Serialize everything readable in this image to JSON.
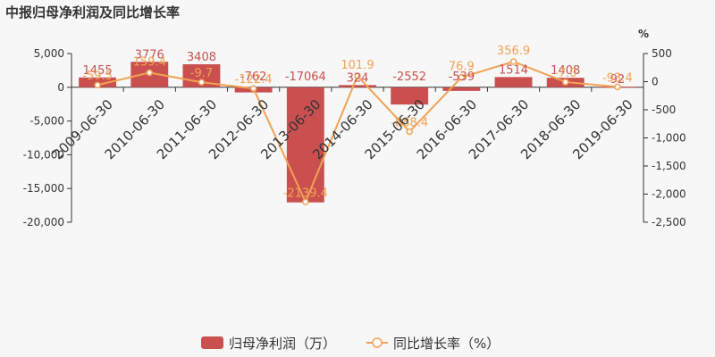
{
  "title": "中报归母净利润及同比增长率",
  "chart_data": {
    "type": "bar",
    "categories": [
      "2009-06-30",
      "2010-06-30",
      "2011-06-30",
      "2012-06-30",
      "2013-06-30",
      "2014-06-30",
      "2015-06-30",
      "2016-06-30",
      "2017-06-30",
      "2018-06-30",
      "2019-06-30"
    ],
    "series": [
      {
        "name": "归母净利润（万）",
        "type": "bar",
        "axis": "left",
        "color": "#c9504f",
        "values": [
          1455,
          3776,
          3408,
          -762,
          -17064,
          324,
          -2552,
          -539,
          1514,
          1408,
          92
        ],
        "labels": [
          "1455",
          "3776",
          "3408",
          "-762",
          "-17064",
          "324",
          "-2552",
          "-539",
          "1514",
          "1408",
          "92"
        ]
      },
      {
        "name": "同比增长率（%）",
        "type": "line",
        "axis": "right",
        "color": "#f2a253",
        "values": [
          -59.5,
          159.4,
          -9.7,
          -122.4,
          -2139.4,
          101.9,
          -888.4,
          76.9,
          356.9,
          -7.0,
          -93.4
        ],
        "labels": [
          "-59.5",
          "159.4",
          "-9.7",
          "-122.4",
          "-2139.4",
          "101.9",
          "-888.4",
          "76.9",
          "356.9",
          "-7.0",
          "-93.4"
        ]
      }
    ],
    "left_axis": {
      "ylim": [
        -20000,
        5000
      ],
      "ticks": [
        "5,000",
        "0",
        "-5,000",
        "-10,000",
        "-15,000",
        "-20,000"
      ],
      "tick_values": [
        5000,
        0,
        -5000,
        -10000,
        -15000,
        -20000
      ]
    },
    "right_axis": {
      "label": "%",
      "ylim": [
        -2500,
        500
      ],
      "ticks": [
        "500",
        "0",
        "-500",
        "-1,000",
        "-1,500",
        "-2,000",
        "-2,500"
      ],
      "tick_values": [
        500,
        0,
        -500,
        -1000,
        -1500,
        -2000,
        -2500
      ]
    },
    "grid": false,
    "legend_position": "bottom"
  }
}
